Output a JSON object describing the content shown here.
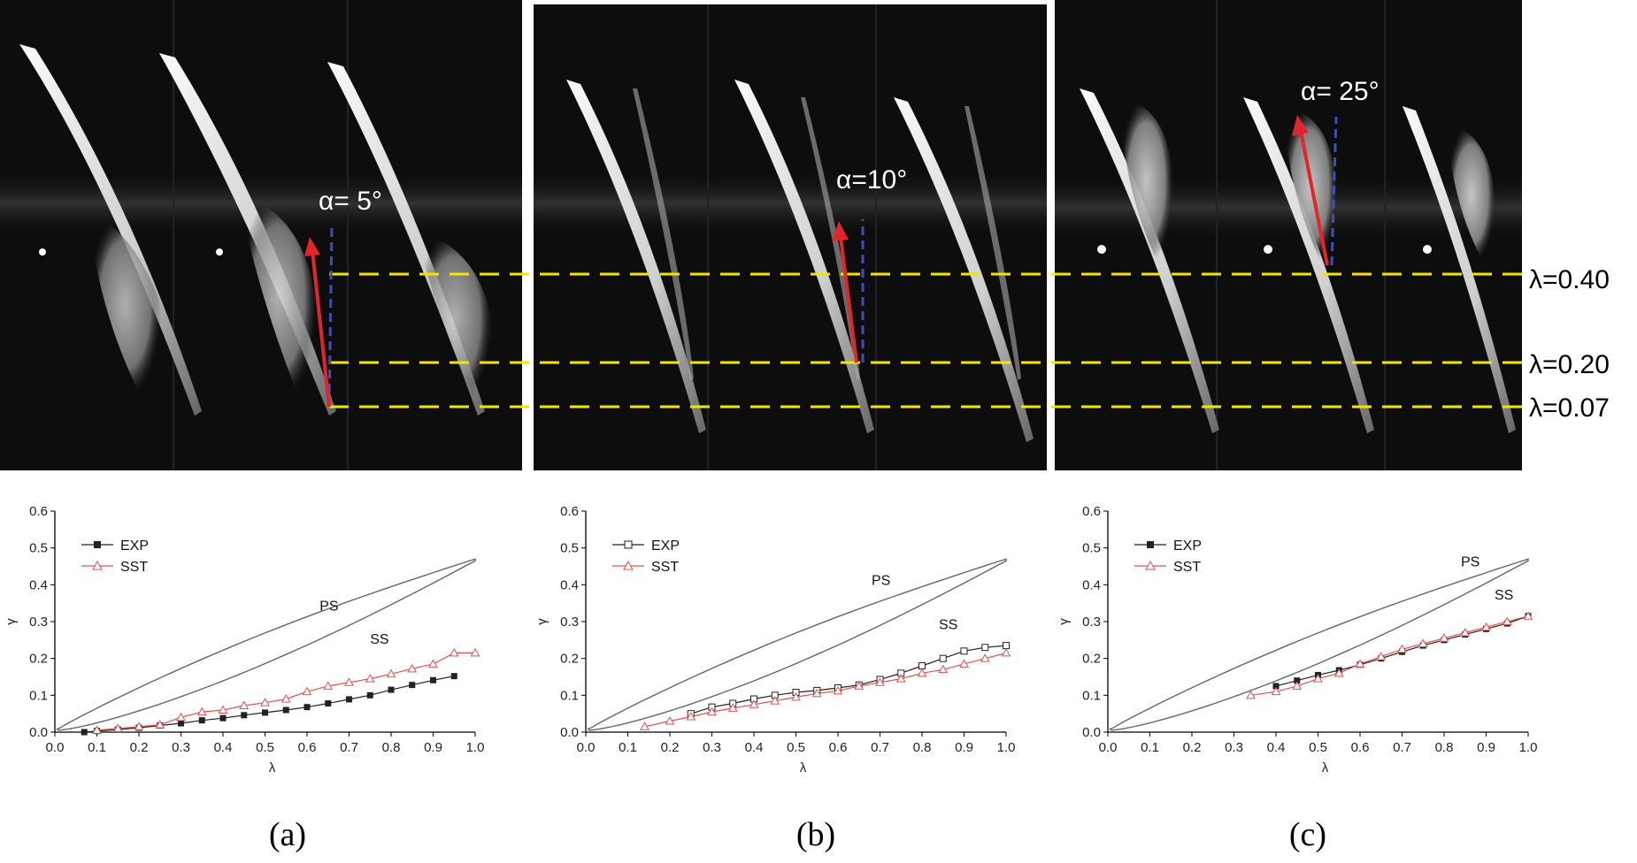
{
  "photos": {
    "angles": [
      "α= 5°",
      "α=10°",
      "α= 25°"
    ],
    "lambda_lines": [
      "λ=0.40",
      "λ=0.20",
      "λ=0.07"
    ]
  },
  "panel_labels": [
    "(a)",
    "(b)",
    "(c)"
  ],
  "colors": {
    "yellow_line": "#f2e600",
    "red_arrow": "#e0262b",
    "blue_dash": "#3a4fb8",
    "exp": "#222222",
    "sst": "#e35050",
    "profile": "#666666"
  },
  "chart_data": [
    {
      "type": "line",
      "xlabel": "λ",
      "ylabel": "γ",
      "xlim": [
        0.0,
        1.0
      ],
      "ylim": [
        0.0,
        0.6
      ],
      "xticks": [
        "0.0",
        "0.1",
        "0.2",
        "0.3",
        "0.4",
        "0.5",
        "0.6",
        "0.7",
        "0.8",
        "0.9",
        "1.0"
      ],
      "yticks": [
        "0.0",
        "0.1",
        "0.2",
        "0.3",
        "0.4",
        "0.5",
        "0.6"
      ],
      "legend_position": "top-left",
      "annotations": [
        {
          "text": "PS",
          "x": 0.63,
          "y": 0.33
        },
        {
          "text": "SS",
          "x": 0.75,
          "y": 0.24
        }
      ],
      "series": [
        {
          "name": "EXP",
          "marker": "filled-square",
          "x": [
            0.07,
            0.1,
            0.15,
            0.2,
            0.25,
            0.3,
            0.35,
            0.4,
            0.45,
            0.5,
            0.55,
            0.6,
            0.65,
            0.7,
            0.75,
            0.8,
            0.85,
            0.9,
            0.95
          ],
          "y": [
            0.0,
            0.003,
            0.007,
            0.012,
            0.018,
            0.024,
            0.032,
            0.038,
            0.046,
            0.053,
            0.06,
            0.068,
            0.078,
            0.089,
            0.1,
            0.115,
            0.128,
            0.141,
            0.152
          ]
        },
        {
          "name": "SST",
          "marker": "open-triangle",
          "x": [
            0.1,
            0.15,
            0.2,
            0.25,
            0.3,
            0.35,
            0.4,
            0.45,
            0.5,
            0.55,
            0.6,
            0.65,
            0.7,
            0.75,
            0.8,
            0.85,
            0.9,
            0.95,
            1.0
          ],
          "y": [
            0.005,
            0.01,
            0.015,
            0.02,
            0.04,
            0.055,
            0.06,
            0.072,
            0.08,
            0.09,
            0.11,
            0.125,
            0.135,
            0.145,
            0.158,
            0.172,
            0.185,
            0.215,
            0.215
          ]
        }
      ]
    },
    {
      "type": "line",
      "xlabel": "λ",
      "ylabel": "γ",
      "xlim": [
        0.0,
        1.0
      ],
      "ylim": [
        0.0,
        0.6
      ],
      "xticks": [
        "0.0",
        "0.1",
        "0.2",
        "0.3",
        "0.4",
        "0.5",
        "0.6",
        "0.7",
        "0.8",
        "0.9",
        "1.0"
      ],
      "yticks": [
        "0.0",
        "0.1",
        "0.2",
        "0.3",
        "0.4",
        "0.5",
        "0.6"
      ],
      "legend_position": "top-left",
      "annotations": [
        {
          "text": "PS",
          "x": 0.68,
          "y": 0.4
        },
        {
          "text": "SS",
          "x": 0.84,
          "y": 0.28
        }
      ],
      "series": [
        {
          "name": "EXP",
          "marker": "open-square",
          "x": [
            0.25,
            0.3,
            0.35,
            0.4,
            0.45,
            0.5,
            0.55,
            0.6,
            0.65,
            0.7,
            0.75,
            0.8,
            0.85,
            0.9,
            0.95,
            1.0
          ],
          "y": [
            0.05,
            0.068,
            0.078,
            0.09,
            0.1,
            0.108,
            0.113,
            0.12,
            0.128,
            0.143,
            0.16,
            0.18,
            0.2,
            0.22,
            0.23,
            0.235
          ]
        },
        {
          "name": "SST",
          "marker": "open-triangle",
          "x": [
            0.14,
            0.2,
            0.25,
            0.3,
            0.35,
            0.4,
            0.45,
            0.5,
            0.55,
            0.6,
            0.65,
            0.7,
            0.75,
            0.8,
            0.85,
            0.9,
            0.95,
            1.0
          ],
          "y": [
            0.015,
            0.03,
            0.042,
            0.055,
            0.065,
            0.075,
            0.085,
            0.095,
            0.105,
            0.112,
            0.125,
            0.135,
            0.145,
            0.16,
            0.17,
            0.185,
            0.2,
            0.215
          ]
        }
      ]
    },
    {
      "type": "line",
      "xlabel": "λ",
      "ylabel": "γ",
      "xlim": [
        0.0,
        1.0
      ],
      "ylim": [
        0.0,
        0.6
      ],
      "xticks": [
        "0.0",
        "0.1",
        "0.2",
        "0.3",
        "0.4",
        "0.5",
        "0.6",
        "0.7",
        "0.8",
        "0.9",
        "1.0"
      ],
      "yticks": [
        "0.0",
        "0.1",
        "0.2",
        "0.3",
        "0.4",
        "0.5",
        "0.6"
      ],
      "legend_position": "top-left",
      "annotations": [
        {
          "text": "PS",
          "x": 0.84,
          "y": 0.45
        },
        {
          "text": "SS",
          "x": 0.92,
          "y": 0.36
        }
      ],
      "series": [
        {
          "name": "EXP",
          "marker": "filled-square",
          "x": [
            0.4,
            0.45,
            0.5,
            0.55,
            0.6,
            0.65,
            0.7,
            0.75,
            0.8,
            0.85,
            0.9,
            0.95,
            1.0
          ],
          "y": [
            0.125,
            0.14,
            0.155,
            0.168,
            0.183,
            0.2,
            0.218,
            0.235,
            0.25,
            0.265,
            0.28,
            0.295,
            0.315
          ]
        },
        {
          "name": "SST",
          "marker": "open-triangle",
          "x": [
            0.34,
            0.4,
            0.45,
            0.5,
            0.55,
            0.6,
            0.65,
            0.7,
            0.75,
            0.8,
            0.85,
            0.9,
            0.95,
            1.0
          ],
          "y": [
            0.1,
            0.11,
            0.125,
            0.145,
            0.16,
            0.185,
            0.205,
            0.225,
            0.24,
            0.255,
            0.27,
            0.285,
            0.3,
            0.315
          ]
        }
      ]
    }
  ]
}
